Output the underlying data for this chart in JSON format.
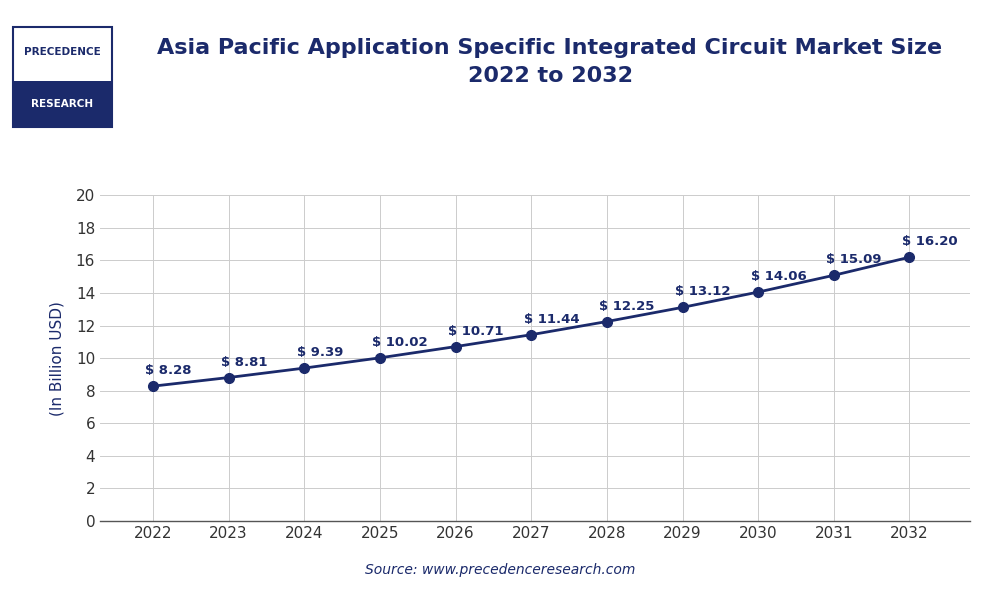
{
  "title_line1": "Asia Pacific Application Specific Integrated Circuit Market Size",
  "title_line2": "2022 to 2032",
  "ylabel": "(In Billion USD)",
  "source": "Source: www.precedenceresearch.com",
  "years": [
    2022,
    2023,
    2024,
    2025,
    2026,
    2027,
    2028,
    2029,
    2030,
    2031,
    2032
  ],
  "values": [
    8.28,
    8.81,
    9.39,
    10.02,
    10.71,
    11.44,
    12.25,
    13.12,
    14.06,
    15.09,
    16.2
  ],
  "labels": [
    "$ 8.28",
    "$ 8.81",
    "$ 9.39",
    "$ 10.02",
    "$ 10.71",
    "$ 11.44",
    "$ 12.25",
    "$ 13.12",
    "$ 14.06",
    "$ 15.09",
    "$ 16.20"
  ],
  "line_color": "#1b2a6b",
  "marker_color": "#1b2a6b",
  "title_color": "#1b2a6b",
  "label_color": "#1b2a6b",
  "axis_label_color": "#1b2a6b",
  "tick_color": "#333333",
  "source_color": "#1b2a6b",
  "grid_color": "#cccccc",
  "background_color": "#ffffff",
  "ylim": [
    0,
    20
  ],
  "yticks": [
    0,
    2,
    4,
    6,
    8,
    10,
    12,
    14,
    16,
    18,
    20
  ],
  "title_fontsize": 16,
  "ylabel_fontsize": 11,
  "label_fontsize": 9.5,
  "tick_fontsize": 11,
  "source_fontsize": 10,
  "logo_text1": "PRECEDENCE",
  "logo_text2": "RESEARCH",
  "logo_bg_color": "#1b2a6b",
  "logo_border_color": "#1b2a6b"
}
